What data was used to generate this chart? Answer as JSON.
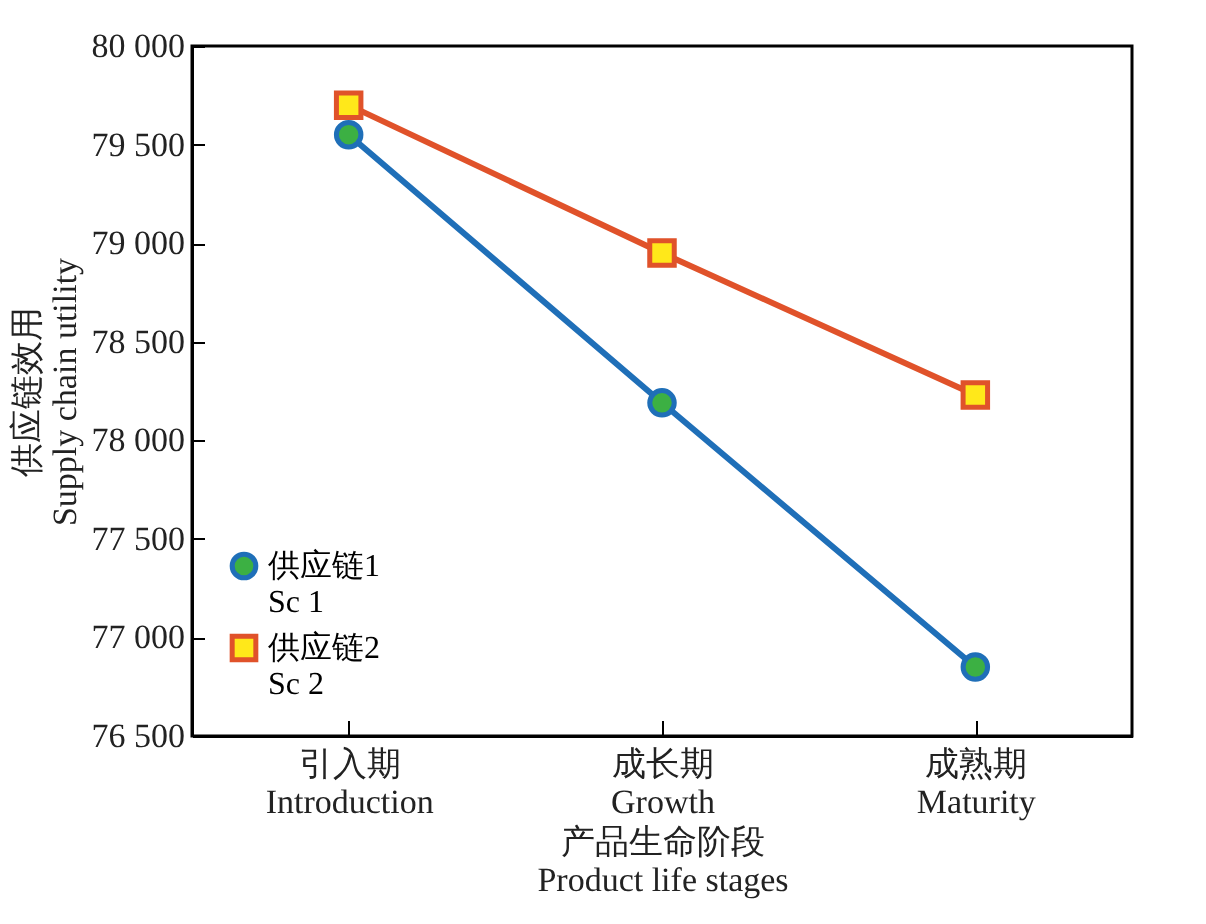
{
  "chart_data": {
    "type": "line",
    "categories": [
      "引入期\nIntroduction",
      "成长期\nGrowth",
      "成熟期\nMaturity"
    ],
    "xlabel": "产品生命阶段\nProduct life stages",
    "ylabel": "供应链效用\nSupply chain utility",
    "series": [
      {
        "name": "供应链1\nSc 1",
        "color": "#1f6fb8",
        "marker": "circle",
        "values": [
          79550,
          78190,
          76850
        ]
      },
      {
        "name": "供应链2\nSc 2",
        "color": "#e0522a",
        "marker": "square",
        "values": [
          79700,
          78950,
          78230
        ]
      }
    ],
    "ylim": [
      76500,
      80000
    ],
    "yticks": [
      {
        "value": 76500,
        "label": "76 500"
      },
      {
        "value": 77000,
        "label": "77 000"
      },
      {
        "value": 77500,
        "label": "77 500"
      },
      {
        "value": 78000,
        "label": "78 000"
      },
      {
        "value": 78500,
        "label": "78 500"
      },
      {
        "value": 79000,
        "label": "79 000"
      },
      {
        "value": 79500,
        "label": "79 500"
      },
      {
        "value": 80000,
        "label": "80 000"
      }
    ],
    "grid": false,
    "legend": "bottom left",
    "line_style": "solid"
  }
}
